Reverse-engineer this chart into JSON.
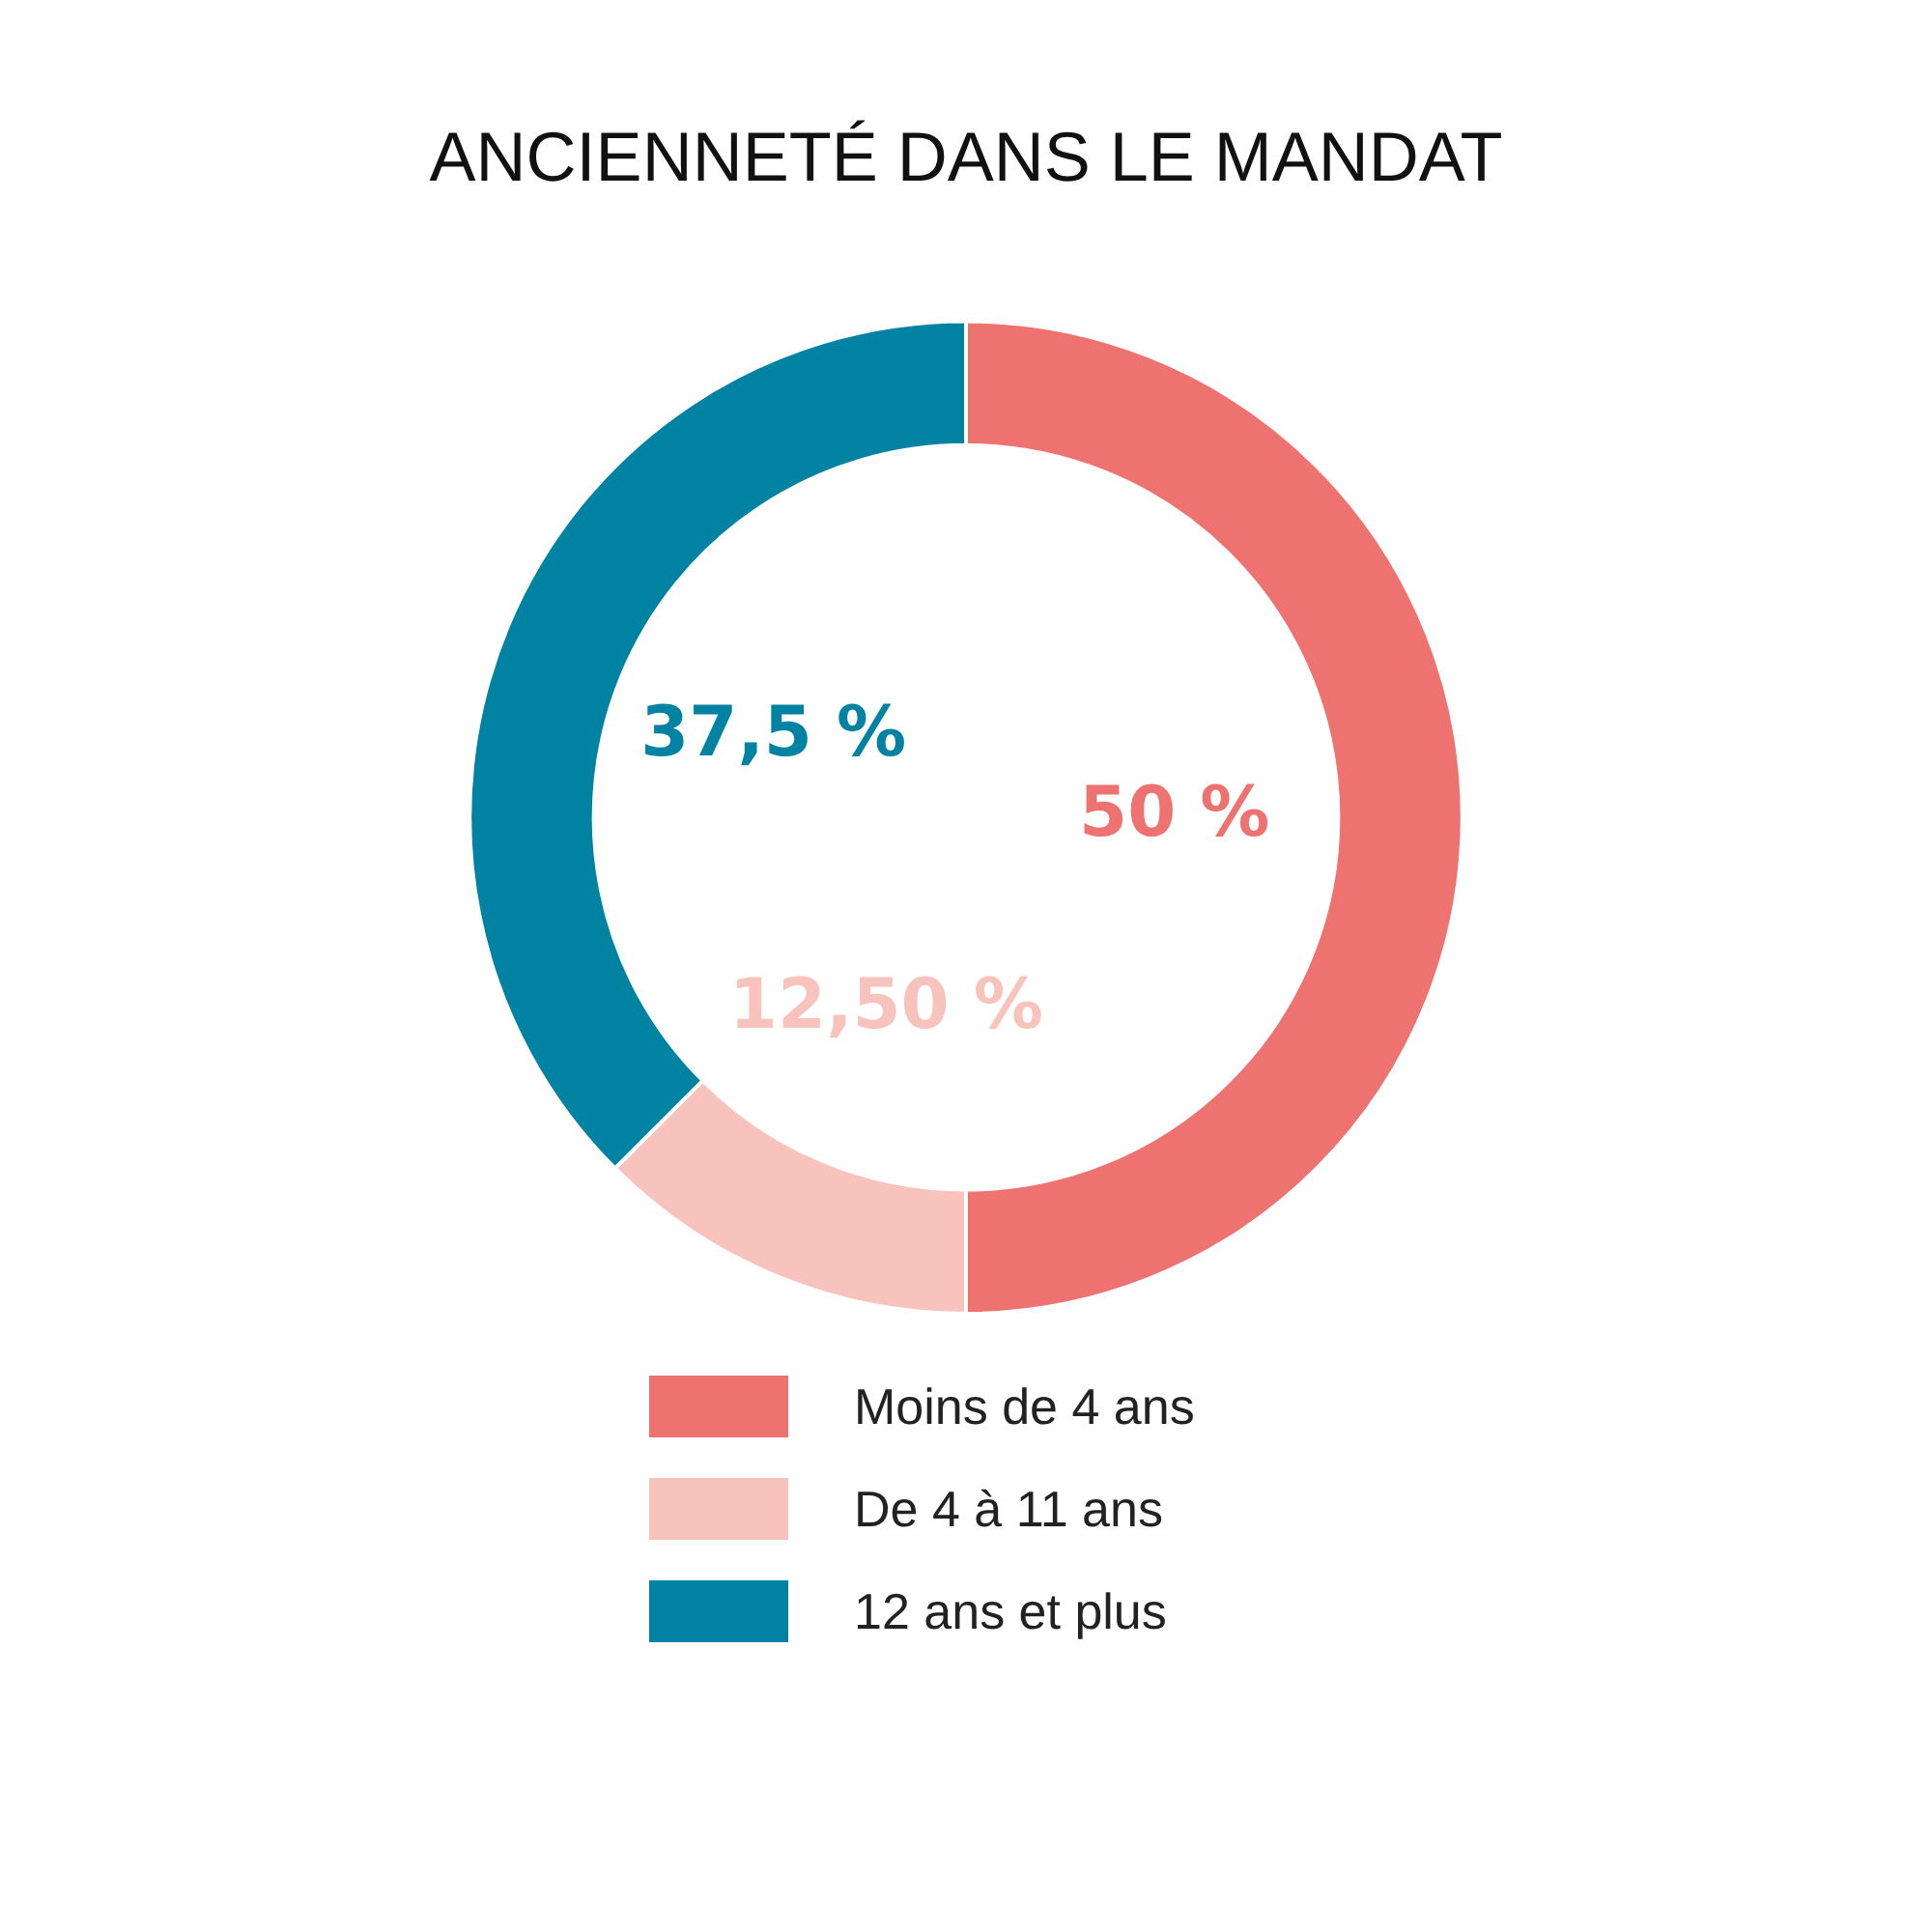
{
  "chart_data": {
    "type": "donut",
    "title": "ANCIENNETÉ DANS LE MANDAT",
    "categories": [
      "Moins de 4 ans",
      "De 4 à 11 ans",
      "12 ans et plus"
    ],
    "values": [
      50,
      12.5,
      37.5
    ],
    "value_labels": [
      "50 %",
      "12,50 %",
      "37,5 %"
    ],
    "colors": [
      "#ee7370",
      "#f8c3bd",
      "#0083a3"
    ],
    "legend": "bottom"
  }
}
